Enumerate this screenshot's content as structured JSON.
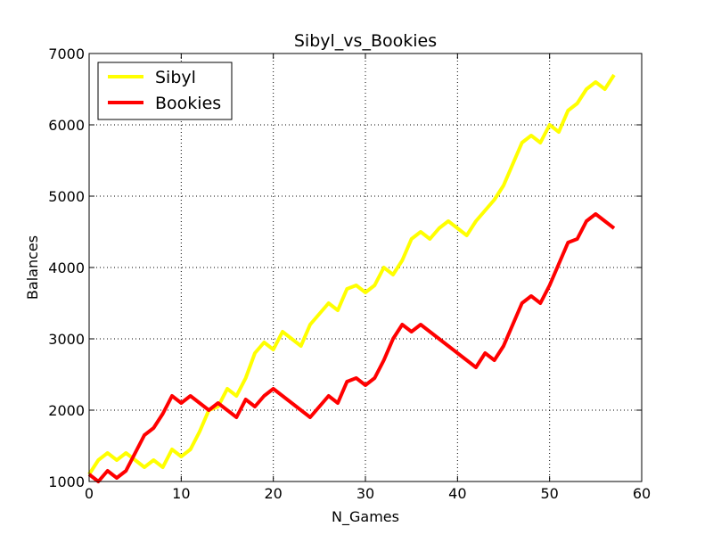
{
  "chart_data": {
    "type": "line",
    "title": "Sibyl_vs_Bookies",
    "xlabel": "N_Games",
    "ylabel": "Balances",
    "xlim": [
      0,
      60
    ],
    "ylim": [
      1000,
      7000
    ],
    "xticks": [
      0,
      10,
      20,
      30,
      40,
      50,
      60
    ],
    "yticks": [
      1000,
      2000,
      3000,
      4000,
      5000,
      6000,
      7000
    ],
    "grid": true,
    "legend_position": "top-left",
    "series": [
      {
        "name": "Sibyl",
        "color": "#ffff00",
        "x": [
          0,
          1,
          2,
          3,
          4,
          5,
          6,
          7,
          8,
          9,
          10,
          11,
          12,
          13,
          14,
          15,
          16,
          17,
          18,
          19,
          20,
          21,
          22,
          23,
          24,
          25,
          26,
          27,
          28,
          29,
          30,
          31,
          32,
          33,
          34,
          35,
          36,
          37,
          38,
          39,
          40,
          41,
          42,
          43,
          44,
          45,
          46,
          47,
          48,
          49,
          50,
          51,
          52,
          53,
          54,
          55,
          56,
          57
        ],
        "values": [
          1100,
          1300,
          1400,
          1300,
          1400,
          1300,
          1200,
          1300,
          1200,
          1450,
          1350,
          1450,
          1700,
          2000,
          2050,
          2300,
          2200,
          2450,
          2800,
          2950,
          2850,
          3100,
          3000,
          2900,
          3200,
          3350,
          3500,
          3400,
          3700,
          3750,
          3650,
          3750,
          4000,
          3900,
          4100,
          4400,
          4500,
          4400,
          4550,
          4650,
          4550,
          4450,
          4650,
          4800,
          4950,
          5150,
          5450,
          5750,
          5850,
          5750,
          6000,
          5900,
          6200,
          6300,
          6500,
          6600,
          6500,
          6700
        ]
      },
      {
        "name": "Bookies",
        "color": "#ff0000",
        "x": [
          0,
          1,
          2,
          3,
          4,
          5,
          6,
          7,
          8,
          9,
          10,
          11,
          12,
          13,
          14,
          15,
          16,
          17,
          18,
          19,
          20,
          21,
          22,
          23,
          24,
          25,
          26,
          27,
          28,
          29,
          30,
          31,
          32,
          33,
          34,
          35,
          36,
          37,
          38,
          39,
          40,
          41,
          42,
          43,
          44,
          45,
          46,
          47,
          48,
          49,
          50,
          51,
          52,
          53,
          54,
          55,
          56,
          57
        ],
        "values": [
          1100,
          1000,
          1150,
          1050,
          1150,
          1400,
          1650,
          1750,
          1950,
          2200,
          2100,
          2200,
          2100,
          2000,
          2100,
          2000,
          1900,
          2150,
          2050,
          2200,
          2300,
          2200,
          2100,
          2000,
          1900,
          2050,
          2200,
          2100,
          2400,
          2450,
          2350,
          2450,
          2700,
          3000,
          3200,
          3100,
          3200,
          3100,
          3000,
          2900,
          2800,
          2700,
          2600,
          2800,
          2700,
          2900,
          3200,
          3500,
          3600,
          3500,
          3750,
          4050,
          4350,
          4400,
          4650,
          4750,
          4650,
          4550
        ]
      }
    ]
  }
}
